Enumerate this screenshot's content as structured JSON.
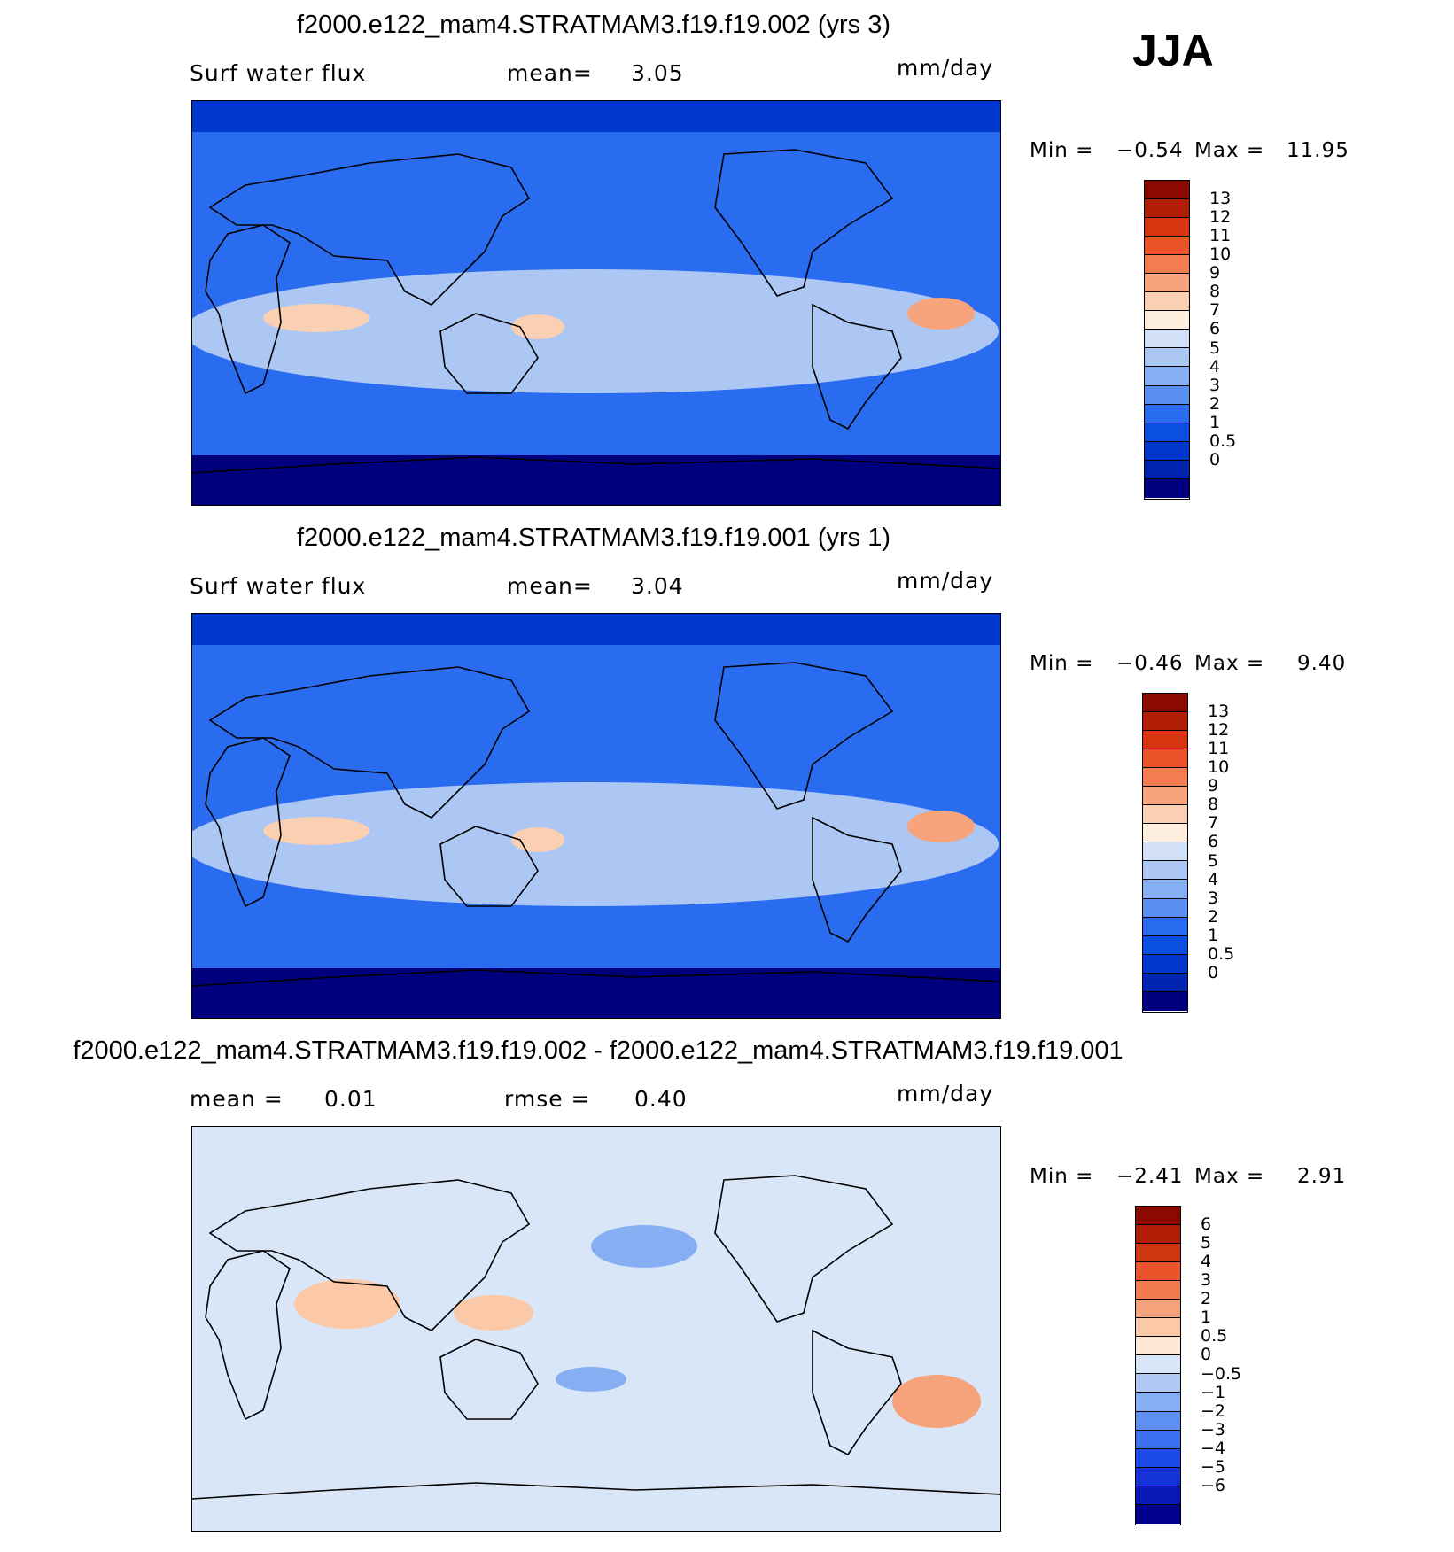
{
  "season": "JJA",
  "colors": {
    "precip_scale": [
      "#00007f",
      "#0023b0",
      "#0037cc",
      "#0a4fe0",
      "#2a6cf0",
      "#5a8ff2",
      "#86aef3",
      "#adc7f5",
      "#d2e1f8",
      "#fdeedd",
      "#fbcfb2",
      "#f7a47c",
      "#f27d4f",
      "#ea5228",
      "#d6350f",
      "#b01e06",
      "#8a0a00"
    ],
    "diff_scale": [
      "#00008c",
      "#0a18b8",
      "#1432d6",
      "#1d4be8",
      "#3a6ff0",
      "#5e8ff2",
      "#86aef3",
      "#b0c9f5",
      "#d8e6f8",
      "#fde7d4",
      "#fbc9a7",
      "#f6a27a",
      "#f07c50",
      "#e9542b",
      "#cf3612",
      "#b01e06",
      "#8a0a00"
    ],
    "land_outline": "#000000"
  },
  "panels": [
    {
      "title": "f2000.e122_mam4.STRATMAM3.f19.f19.002 (yrs 3)",
      "field": "Surf water flux",
      "stat1_label": "mean=",
      "stat1_value": "3.05",
      "units": "mm/day",
      "min_label": "Min =",
      "min_value": "−0.54",
      "max_label": "Max =",
      "max_value": "11.95",
      "colorbar_levels": [
        "13",
        "12",
        "11",
        "10",
        "9",
        "8",
        "7",
        "6",
        "5",
        "4",
        "3",
        "2",
        "1",
        "0.5",
        "0"
      ]
    },
    {
      "title": "f2000.e122_mam4.STRATMAM3.f19.f19.001 (yrs 1)",
      "field": "Surf water flux",
      "stat1_label": "mean=",
      "stat1_value": "3.04",
      "units": "mm/day",
      "min_label": "Min =",
      "min_value": "−0.46",
      "max_label": "Max =",
      "max_value": "9.40",
      "colorbar_levels": [
        "13",
        "12",
        "11",
        "10",
        "9",
        "8",
        "7",
        "6",
        "5",
        "4",
        "3",
        "2",
        "1",
        "0.5",
        "0"
      ]
    },
    {
      "title": "f2000.e122_mam4.STRATMAM3.f19.f19.002 - f2000.e122_mam4.STRATMAM3.f19.f19.001",
      "field": "mean =",
      "stat1_label": "",
      "stat1_value": "0.01",
      "stat2_label": "rmse =",
      "stat2_value": "0.40",
      "units": "mm/day",
      "min_label": "Min =",
      "min_value": "−2.41",
      "max_label": "Max =",
      "max_value": "2.91",
      "colorbar_levels": [
        "6",
        "5",
        "4",
        "3",
        "2",
        "1",
        "0.5",
        "0",
        "−0.5",
        "−1",
        "−2",
        "−3",
        "−4",
        "−5",
        "−6"
      ]
    }
  ]
}
